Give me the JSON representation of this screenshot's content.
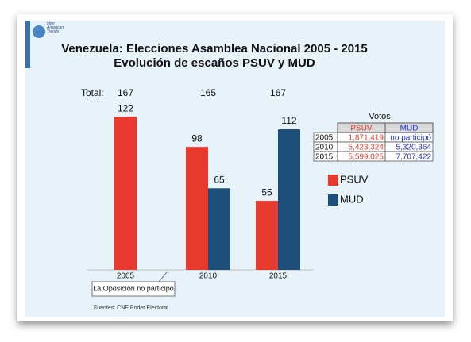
{
  "chart_data": {
    "type": "bar",
    "title": "Venezuela: Elecciones Asamblea Nacional 2005 - 2015",
    "subtitle": "Evolución de escaños PSUV y MUD",
    "logo": [
      "Inter",
      "American",
      "Trends"
    ],
    "categories": [
      "2005",
      "2010",
      "2015"
    ],
    "series": [
      {
        "name": "PSUV",
        "color": "#e8392f",
        "values": [
          122,
          98,
          55
        ]
      },
      {
        "name": "MUD",
        "color": "#1d4e7a",
        "values": [
          null,
          65,
          112
        ]
      }
    ],
    "totals_label": "Total:",
    "totals": [
      167,
      165,
      167
    ],
    "annotation": "La Oposición no participó",
    "source": "Fuentes: CNE Poder Electoral",
    "table": {
      "title": "Votos",
      "rows": [
        [
          "2005",
          "1,871,419",
          "no participó"
        ],
        [
          "2010",
          "5,423,324",
          "5,320,364"
        ],
        [
          "2015",
          "5,599,025",
          "7,707,422"
        ]
      ]
    }
  }
}
